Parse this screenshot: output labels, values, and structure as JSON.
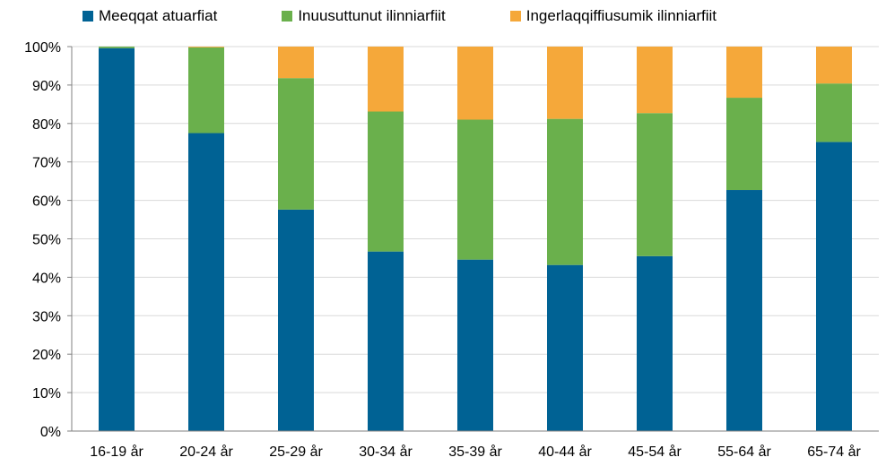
{
  "chart_data": {
    "type": "bar",
    "stacked": true,
    "categories": [
      "16-19 år",
      "20-24 år",
      "25-29 år",
      "30-34 år",
      "35-39 år",
      "40-44 år",
      "45-54 år",
      "55-64 år",
      "65-74 år"
    ],
    "series": [
      {
        "name": "Meeqqat atuarfiat",
        "color": "#006294",
        "values": [
          99.6,
          77.5,
          57.6,
          46.7,
          44.6,
          43.2,
          45.5,
          62.7,
          75.2
        ]
      },
      {
        "name": "Inuusuttunut ilinniarfiit",
        "color": "#6ab04c",
        "values": [
          0.4,
          22.3,
          34.2,
          36.4,
          36.4,
          38.0,
          37.2,
          24.0,
          15.2
        ]
      },
      {
        "name": "Ingerlaqqiffiusumik ilinniarfiit",
        "color": "#f5a83a",
        "values": [
          0.0,
          0.2,
          8.2,
          16.9,
          19.0,
          18.8,
          17.3,
          13.3,
          9.6
        ]
      }
    ],
    "y_tick_labels": [
      "0%",
      "10%",
      "20%",
      "30%",
      "40%",
      "50%",
      "60%",
      "70%",
      "80%",
      "90%",
      "100%"
    ],
    "ylim": [
      0,
      100
    ],
    "legend_position": "top",
    "grid": true,
    "title": "",
    "xlabel": "",
    "ylabel": ""
  }
}
